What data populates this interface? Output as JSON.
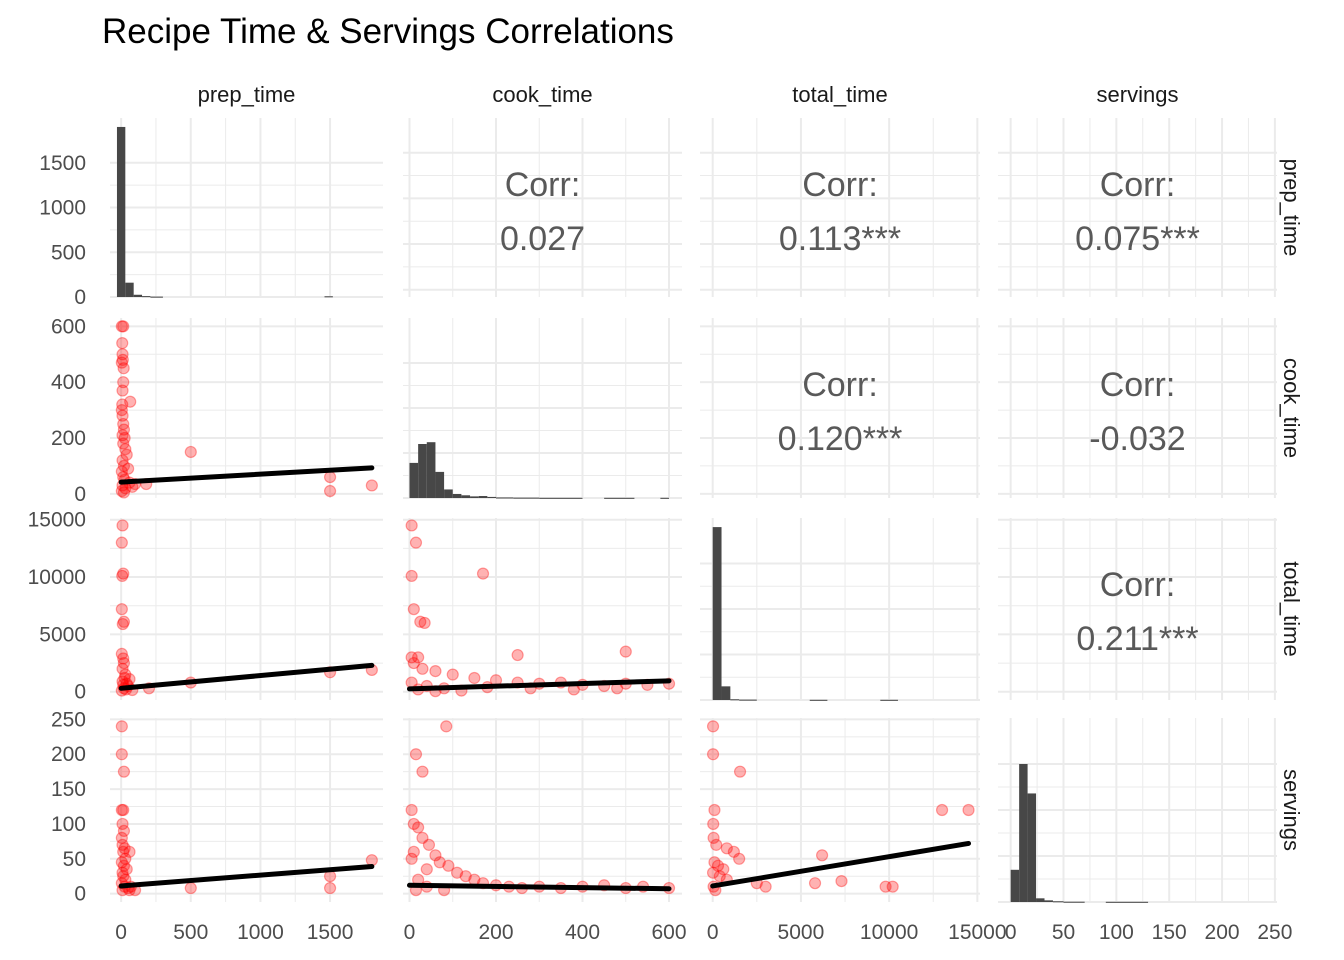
{
  "title": "Recipe Time & Servings Correlations",
  "chart_data": {
    "type": "scatter-matrix",
    "title": "Recipe Time & Servings Correlations",
    "variables": [
      "prep_time",
      "cook_time",
      "total_time",
      "servings"
    ],
    "grid": true,
    "colors": {
      "points": "#ff0000",
      "bars": "#474747",
      "fit_line": "#000000",
      "grid": "#ebebeb"
    },
    "axes": {
      "prep_time": {
        "range": [
          -80,
          1880
        ],
        "ticks": [
          0,
          500,
          1000,
          1500
        ],
        "tick_labels": [
          "0",
          "500",
          "1000",
          "1500"
        ]
      },
      "cook_time": {
        "range": [
          -15,
          630
        ],
        "ticks": [
          0,
          200,
          400,
          600
        ],
        "tick_labels": [
          "0",
          "200",
          "400",
          "600"
        ]
      },
      "total_time": {
        "range": [
          -720,
          15150
        ],
        "ticks": [
          0,
          5000,
          10000,
          15000
        ],
        "tick_labels": [
          "0",
          "5000",
          "10000",
          "15000"
        ]
      },
      "servings": {
        "range": [
          -12,
          252
        ],
        "ticks": [
          0,
          50,
          100,
          150,
          200,
          250
        ],
        "tick_labels": [
          "0",
          "50",
          "100",
          "150",
          "200",
          "250"
        ]
      }
    },
    "diag_count_axis": {
      "range": [
        0,
        2000
      ],
      "ticks": [
        0,
        500,
        1000,
        1500
      ],
      "tick_labels": [
        "0",
        "500",
        "1000",
        "1500"
      ]
    },
    "correlations": [
      {
        "row": "prep_time",
        "col": "cook_time",
        "label": "Corr:",
        "value": "0.027"
      },
      {
        "row": "prep_time",
        "col": "total_time",
        "label": "Corr:",
        "value": "0.113***"
      },
      {
        "row": "prep_time",
        "col": "servings",
        "label": "Corr:",
        "value": "0.075***"
      },
      {
        "row": "cook_time",
        "col": "total_time",
        "label": "Corr:",
        "value": "0.120***"
      },
      {
        "row": "cook_time",
        "col": "servings",
        "label": "Corr:",
        "value": "-0.032"
      },
      {
        "row": "total_time",
        "col": "servings",
        "label": "Corr:",
        "value": "0.211***"
      }
    ],
    "histograms": {
      "prep_time": {
        "bins": [
          [
            -30,
            30,
            1900
          ],
          [
            30,
            90,
            160
          ],
          [
            90,
            150,
            25
          ],
          [
            150,
            210,
            10
          ],
          [
            210,
            300,
            4
          ],
          [
            1460,
            1520,
            8
          ]
        ]
      },
      "cook_time": {
        "bins": [
          [
            0,
            20,
            390
          ],
          [
            20,
            40,
            600
          ],
          [
            40,
            60,
            620
          ],
          [
            60,
            80,
            290
          ],
          [
            80,
            100,
            95
          ],
          [
            100,
            120,
            45
          ],
          [
            120,
            140,
            30
          ],
          [
            140,
            160,
            18
          ],
          [
            160,
            180,
            22
          ],
          [
            180,
            200,
            12
          ],
          [
            200,
            240,
            6
          ],
          [
            240,
            300,
            4
          ],
          [
            300,
            400,
            2
          ],
          [
            450,
            520,
            2
          ],
          [
            580,
            600,
            2
          ]
        ]
      },
      "total_time": {
        "bins": [
          [
            0,
            500,
            1900
          ],
          [
            500,
            1000,
            150
          ],
          [
            1000,
            1500,
            8
          ],
          [
            1500,
            2500,
            4
          ],
          [
            5500,
            6500,
            2
          ],
          [
            9500,
            10500,
            2
          ]
        ]
      },
      "servings": {
        "bins": [
          [
            0,
            8,
            350
          ],
          [
            8,
            16,
            1500
          ],
          [
            16,
            24,
            1180
          ],
          [
            24,
            32,
            40
          ],
          [
            32,
            40,
            18
          ],
          [
            40,
            50,
            8
          ],
          [
            50,
            70,
            3
          ],
          [
            90,
            130,
            2
          ]
        ]
      }
    },
    "points": {
      "prep_cook": [
        [
          5,
          600
        ],
        [
          15,
          600
        ],
        [
          8,
          540
        ],
        [
          10,
          500
        ],
        [
          12,
          480
        ],
        [
          5,
          470
        ],
        [
          18,
          450
        ],
        [
          15,
          400
        ],
        [
          10,
          370
        ],
        [
          8,
          320
        ],
        [
          65,
          330
        ],
        [
          5,
          300
        ],
        [
          10,
          280
        ],
        [
          15,
          250
        ],
        [
          20,
          230
        ],
        [
          10,
          210
        ],
        [
          25,
          200
        ],
        [
          15,
          180
        ],
        [
          30,
          160
        ],
        [
          40,
          140
        ],
        [
          10,
          120
        ],
        [
          20,
          100
        ],
        [
          50,
          90
        ],
        [
          5,
          80
        ],
        [
          15,
          60
        ],
        [
          25,
          50
        ],
        [
          60,
          40
        ],
        [
          10,
          30
        ],
        [
          30,
          20
        ],
        [
          5,
          10
        ],
        [
          20,
          5
        ],
        [
          80,
          25
        ],
        [
          100,
          35
        ],
        [
          180,
          35
        ],
        [
          500,
          150
        ],
        [
          1500,
          60
        ],
        [
          1500,
          10
        ],
        [
          1800,
          30
        ]
      ],
      "prep_total": [
        [
          10,
          14500
        ],
        [
          5,
          13000
        ],
        [
          15,
          10300
        ],
        [
          8,
          10100
        ],
        [
          5,
          7200
        ],
        [
          20,
          6100
        ],
        [
          12,
          5900
        ],
        [
          5,
          3300
        ],
        [
          15,
          2900
        ],
        [
          20,
          2500
        ],
        [
          10,
          2000
        ],
        [
          30,
          1500
        ],
        [
          25,
          1200
        ],
        [
          60,
          1100
        ],
        [
          10,
          900
        ],
        [
          40,
          700
        ],
        [
          15,
          600
        ],
        [
          50,
          500
        ],
        [
          20,
          300
        ],
        [
          35,
          200
        ],
        [
          5,
          100
        ],
        [
          80,
          150
        ],
        [
          200,
          300
        ],
        [
          500,
          800
        ],
        [
          1500,
          1700
        ],
        [
          1800,
          1900
        ]
      ],
      "prep_servings": [
        [
          5,
          240
        ],
        [
          5,
          200
        ],
        [
          20,
          175
        ],
        [
          5,
          120
        ],
        [
          15,
          120
        ],
        [
          10,
          100
        ],
        [
          20,
          90
        ],
        [
          5,
          80
        ],
        [
          10,
          70
        ],
        [
          25,
          65
        ],
        [
          15,
          60
        ],
        [
          60,
          60
        ],
        [
          30,
          50
        ],
        [
          5,
          45
        ],
        [
          20,
          40
        ],
        [
          40,
          35
        ],
        [
          10,
          30
        ],
        [
          15,
          25
        ],
        [
          30,
          20
        ],
        [
          5,
          15
        ],
        [
          25,
          10
        ],
        [
          10,
          5
        ],
        [
          50,
          8
        ],
        [
          60,
          5
        ],
        [
          70,
          10
        ],
        [
          100,
          5
        ],
        [
          500,
          8
        ],
        [
          1500,
          25
        ],
        [
          1500,
          8
        ],
        [
          1800,
          48
        ]
      ],
      "cook_total": [
        [
          5,
          14500
        ],
        [
          15,
          13000
        ],
        [
          5,
          10100
        ],
        [
          170,
          10300
        ],
        [
          10,
          7200
        ],
        [
          25,
          6100
        ],
        [
          35,
          6000
        ],
        [
          5,
          3000
        ],
        [
          20,
          3000
        ],
        [
          250,
          3200
        ],
        [
          500,
          3500
        ],
        [
          10,
          2500
        ],
        [
          30,
          2000
        ],
        [
          60,
          1800
        ],
        [
          100,
          1500
        ],
        [
          150,
          1200
        ],
        [
          200,
          1000
        ],
        [
          250,
          800
        ],
        [
          300,
          700
        ],
        [
          350,
          800
        ],
        [
          400,
          600
        ],
        [
          450,
          500
        ],
        [
          500,
          700
        ],
        [
          550,
          600
        ],
        [
          600,
          700
        ],
        [
          5,
          800
        ],
        [
          40,
          500
        ],
        [
          80,
          300
        ],
        [
          120,
          100
        ],
        [
          20,
          200
        ],
        [
          60,
          50
        ],
        [
          180,
          400
        ],
        [
          280,
          300
        ],
        [
          380,
          200
        ],
        [
          480,
          300
        ]
      ],
      "cook_servings": [
        [
          85,
          240
        ],
        [
          15,
          200
        ],
        [
          30,
          175
        ],
        [
          5,
          120
        ],
        [
          10,
          100
        ],
        [
          20,
          95
        ],
        [
          30,
          80
        ],
        [
          45,
          70
        ],
        [
          10,
          60
        ],
        [
          60,
          55
        ],
        [
          5,
          50
        ],
        [
          70,
          45
        ],
        [
          90,
          40
        ],
        [
          40,
          35
        ],
        [
          110,
          30
        ],
        [
          130,
          25
        ],
        [
          150,
          20
        ],
        [
          170,
          15
        ],
        [
          200,
          12
        ],
        [
          230,
          10
        ],
        [
          260,
          8
        ],
        [
          300,
          10
        ],
        [
          350,
          8
        ],
        [
          400,
          10
        ],
        [
          450,
          12
        ],
        [
          500,
          8
        ],
        [
          540,
          10
        ],
        [
          600,
          8
        ],
        [
          20,
          20
        ],
        [
          40,
          10
        ],
        [
          80,
          5
        ],
        [
          15,
          5
        ]
      ],
      "total_servings": [
        [
          20,
          240
        ],
        [
          20,
          200
        ],
        [
          1550,
          175
        ],
        [
          100,
          120
        ],
        [
          30,
          100
        ],
        [
          50,
          80
        ],
        [
          200,
          70
        ],
        [
          800,
          65
        ],
        [
          1200,
          60
        ],
        [
          1500,
          50
        ],
        [
          100,
          45
        ],
        [
          300,
          40
        ],
        [
          600,
          35
        ],
        [
          20,
          30
        ],
        [
          400,
          25
        ],
        [
          800,
          20
        ],
        [
          2500,
          15
        ],
        [
          3000,
          10
        ],
        [
          5800,
          15
        ],
        [
          6200,
          55
        ],
        [
          7300,
          18
        ],
        [
          9800,
          10
        ],
        [
          10200,
          10
        ],
        [
          13000,
          120
        ],
        [
          14500,
          120
        ],
        [
          50,
          10
        ],
        [
          150,
          5
        ]
      ]
    },
    "fit_lines": {
      "prep_cook": {
        "x": [
          0,
          1800
        ],
        "y": [
          42,
          93
        ]
      },
      "prep_total": {
        "x": [
          0,
          1800
        ],
        "y": [
          300,
          2300
        ]
      },
      "prep_servings": {
        "x": [
          0,
          1800
        ],
        "y": [
          11,
          39
        ]
      },
      "cook_total": {
        "x": [
          0,
          600
        ],
        "y": [
          250,
          950
        ]
      },
      "cook_servings": {
        "x": [
          0,
          600
        ],
        "y": [
          12,
          7
        ]
      },
      "total_servings": {
        "x": [
          0,
          14500
        ],
        "y": [
          11,
          72
        ]
      }
    }
  }
}
